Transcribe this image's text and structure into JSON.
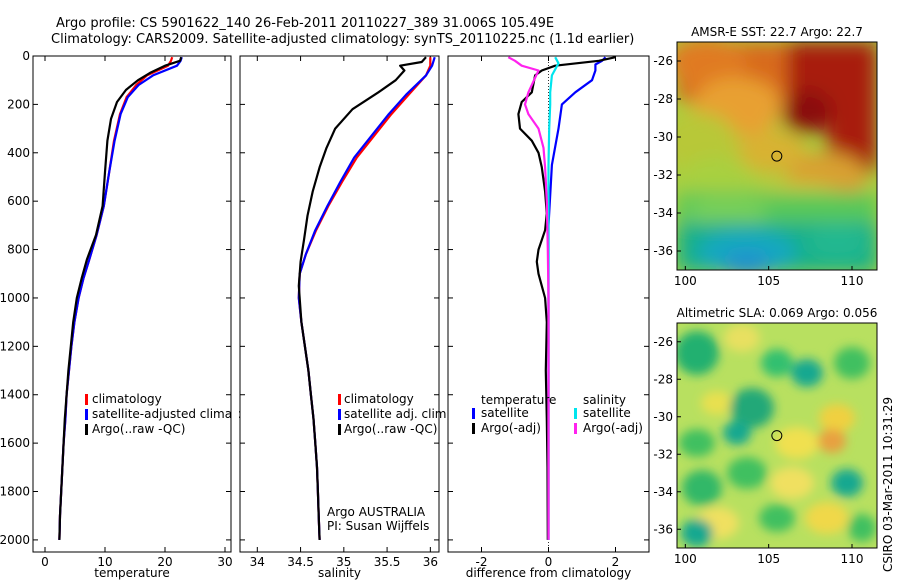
{
  "header": {
    "line1": "Argo profile: CS 5901622_140 26-Feb-2011 20110227_389 31.006S 105.49E",
    "line2": "Climatology: CARS2009. Satellite-adjusted climatology: synTS_20110225.nc (1.1d earlier)"
  },
  "side_label": "CSIRO 03-Mar-2011 10:31:29",
  "colors": {
    "climatology": "#ff0000",
    "satellite": "#0000ff",
    "argo": "#000000",
    "satellite_salinity": "#00e5ee",
    "argo_adj_salinity": "#ff22ee"
  },
  "chart_data": [
    {
      "type": "line",
      "id": "temperature",
      "xlabel": "temperature",
      "ylabel": "",
      "xlim": [
        -2,
        31
      ],
      "ylim": [
        2050,
        0
      ],
      "xticks": [
        0,
        10,
        20,
        30
      ],
      "yticks": [
        0,
        200,
        400,
        600,
        800,
        1000,
        1200,
        1400,
        1600,
        1800,
        2000
      ],
      "legend": {
        "placement": "lower-left",
        "entries": [
          "climatology",
          "satellite-adjusted climatolog",
          "Argo(..raw -QC)"
        ]
      },
      "series": [
        {
          "name": "climatology",
          "color": "#ff0000",
          "points": [
            [
              21.2,
              5
            ],
            [
              21.0,
              20
            ],
            [
              20.5,
              40
            ],
            [
              17.0,
              80
            ],
            [
              15.2,
              120
            ],
            [
              13.6,
              170
            ],
            [
              12.5,
              240
            ],
            [
              11.5,
              350
            ],
            [
              10.7,
              480
            ],
            [
              9.8,
              620
            ],
            [
              8.6,
              740
            ],
            [
              7.4,
              840
            ],
            [
              6.4,
              920
            ],
            [
              5.6,
              1000
            ],
            [
              4.9,
              1100
            ],
            [
              4.4,
              1200
            ],
            [
              4.0,
              1300
            ],
            [
              3.6,
              1400
            ],
            [
              3.4,
              1500
            ],
            [
              3.1,
              1600
            ],
            [
              2.9,
              1700
            ],
            [
              2.7,
              1800
            ],
            [
              2.5,
              1900
            ],
            [
              2.4,
              2000
            ]
          ]
        },
        {
          "name": "satellite-adjusted climatolog",
          "color": "#0000ff",
          "points": [
            [
              22.8,
              5
            ],
            [
              22.6,
              20
            ],
            [
              22.0,
              40
            ],
            [
              18.0,
              80
            ],
            [
              15.6,
              120
            ],
            [
              13.8,
              170
            ],
            [
              12.6,
              240
            ],
            [
              11.6,
              350
            ],
            [
              10.7,
              480
            ],
            [
              9.8,
              620
            ],
            [
              8.6,
              740
            ],
            [
              7.4,
              840
            ],
            [
              6.4,
              920
            ],
            [
              5.6,
              1000
            ],
            [
              4.9,
              1100
            ],
            [
              4.4,
              1200
            ],
            [
              4.0,
              1300
            ],
            [
              3.6,
              1400
            ],
            [
              3.4,
              1500
            ],
            [
              3.1,
              1600
            ],
            [
              2.9,
              1700
            ],
            [
              2.7,
              1800
            ],
            [
              2.5,
              1900
            ],
            [
              2.4,
              2000
            ]
          ]
        },
        {
          "name": "Argo(..raw -QC)",
          "color": "#000000",
          "points": [
            [
              22.7,
              5
            ],
            [
              22.5,
              20
            ],
            [
              20.0,
              40
            ],
            [
              17.5,
              70
            ],
            [
              15.5,
              100
            ],
            [
              13.5,
              140
            ],
            [
              12.0,
              190
            ],
            [
              11.0,
              260
            ],
            [
              10.4,
              350
            ],
            [
              10.0,
              480
            ],
            [
              9.6,
              620
            ],
            [
              8.5,
              740
            ],
            [
              7.0,
              840
            ],
            [
              6.1,
              920
            ],
            [
              5.3,
              1000
            ],
            [
              4.7,
              1100
            ],
            [
              4.3,
              1200
            ],
            [
              3.9,
              1300
            ],
            [
              3.6,
              1400
            ],
            [
              3.3,
              1500
            ],
            [
              3.1,
              1600
            ],
            [
              2.9,
              1700
            ],
            [
              2.7,
              1800
            ],
            [
              2.5,
              1900
            ],
            [
              2.4,
              2000
            ]
          ]
        }
      ]
    },
    {
      "type": "line",
      "id": "salinity",
      "xlabel": "salinity",
      "xlim": [
        33.8,
        36.1
      ],
      "ylim": [
        2050,
        0
      ],
      "xticks": [
        34,
        34.5,
        35,
        35.5,
        36
      ],
      "legend": {
        "placement": "lower-right",
        "entries": [
          "climatology",
          "satellite adj. clim.",
          "Argo(..raw -QC)"
        ]
      },
      "annotation": [
        "Argo AUSTRALIA",
        "PI: Susan Wijffels"
      ],
      "series": [
        {
          "name": "climatology",
          "color": "#ff0000",
          "points": [
            [
              36.0,
              5
            ],
            [
              36.0,
              40
            ],
            [
              35.95,
              80
            ],
            [
              35.75,
              160
            ],
            [
              35.55,
              240
            ],
            [
              35.35,
              330
            ],
            [
              35.15,
              420
            ],
            [
              34.98,
              520
            ],
            [
              34.82,
              620
            ],
            [
              34.68,
              720
            ],
            [
              34.56,
              820
            ],
            [
              34.49,
              900
            ],
            [
              34.48,
              1000
            ],
            [
              34.51,
              1100
            ],
            [
              34.55,
              1200
            ],
            [
              34.59,
              1300
            ],
            [
              34.62,
              1400
            ],
            [
              34.65,
              1500
            ],
            [
              34.67,
              1600
            ],
            [
              34.69,
              1700
            ],
            [
              34.7,
              1800
            ],
            [
              34.71,
              1900
            ],
            [
              34.72,
              2000
            ]
          ]
        },
        {
          "name": "satellite adj. clim.",
          "color": "#0000ff",
          "points": [
            [
              36.05,
              5
            ],
            [
              36.02,
              40
            ],
            [
              35.95,
              80
            ],
            [
              35.72,
              160
            ],
            [
              35.52,
              240
            ],
            [
              35.32,
              330
            ],
            [
              35.12,
              420
            ],
            [
              34.96,
              520
            ],
            [
              34.81,
              620
            ],
            [
              34.67,
              720
            ],
            [
              34.56,
              820
            ],
            [
              34.49,
              900
            ],
            [
              34.48,
              1000
            ],
            [
              34.51,
              1100
            ],
            [
              34.55,
              1200
            ],
            [
              34.59,
              1300
            ],
            [
              34.62,
              1400
            ],
            [
              34.65,
              1500
            ],
            [
              34.67,
              1600
            ],
            [
              34.69,
              1700
            ],
            [
              34.7,
              1800
            ],
            [
              34.71,
              1900
            ],
            [
              34.72,
              2000
            ]
          ]
        },
        {
          "name": "Argo(..raw -QC)",
          "color": "#000000",
          "points": [
            [
              35.95,
              5
            ],
            [
              35.9,
              25
            ],
            [
              35.65,
              40
            ],
            [
              35.7,
              60
            ],
            [
              35.6,
              100
            ],
            [
              35.4,
              150
            ],
            [
              35.1,
              220
            ],
            [
              34.9,
              300
            ],
            [
              34.8,
              380
            ],
            [
              34.72,
              460
            ],
            [
              34.64,
              560
            ],
            [
              34.58,
              660
            ],
            [
              34.54,
              760
            ],
            [
              34.5,
              850
            ],
            [
              34.48,
              950
            ],
            [
              34.51,
              1100
            ],
            [
              34.55,
              1200
            ],
            [
              34.59,
              1300
            ],
            [
              34.62,
              1400
            ],
            [
              34.65,
              1500
            ],
            [
              34.67,
              1600
            ],
            [
              34.69,
              1700
            ],
            [
              34.7,
              1800
            ],
            [
              34.71,
              1900
            ],
            [
              34.72,
              2000
            ]
          ]
        }
      ]
    },
    {
      "type": "line",
      "id": "difference",
      "xlabel": "difference from climatology",
      "xlim": [
        -3,
        3
      ],
      "ylim": [
        2050,
        0
      ],
      "xticks": [
        -2,
        0,
        2
      ],
      "legend": {
        "placement": "lower",
        "groups": [
          {
            "title": "temperature",
            "entries": [
              "satellite",
              "Argo(-adj)"
            ]
          },
          {
            "title": "salinity",
            "entries": [
              "satellite",
              "Argo(-adj)"
            ]
          }
        ]
      },
      "series": [
        {
          "name": "temperature satellite",
          "color": "#0000ff",
          "points": [
            [
              1.7,
              5
            ],
            [
              1.6,
              20
            ],
            [
              1.4,
              35
            ],
            [
              1.4,
              60
            ],
            [
              1.3,
              100
            ],
            [
              0.8,
              150
            ],
            [
              0.4,
              200
            ],
            [
              0.3,
              300
            ],
            [
              0.1,
              450
            ],
            [
              0.0,
              700
            ],
            [
              0.0,
              2000
            ]
          ]
        },
        {
          "name": "temperature Argo(-adj)",
          "color": "#000000",
          "points": [
            [
              2.0,
              5
            ],
            [
              1.5,
              20
            ],
            [
              0.2,
              40
            ],
            [
              -0.2,
              60
            ],
            [
              -0.4,
              80
            ],
            [
              -0.5,
              150
            ],
            [
              -0.8,
              190
            ],
            [
              -0.9,
              240
            ],
            [
              -0.85,
              300
            ],
            [
              -0.5,
              350
            ],
            [
              -0.3,
              400
            ],
            [
              -0.2,
              460
            ],
            [
              -0.1,
              560
            ],
            [
              -0.05,
              650
            ],
            [
              -0.1,
              720
            ],
            [
              -0.3,
              800
            ],
            [
              -0.35,
              850
            ],
            [
              -0.3,
              900
            ],
            [
              -0.2,
              950
            ],
            [
              -0.1,
              1000
            ],
            [
              -0.05,
              1100
            ],
            [
              -0.08,
              1300
            ],
            [
              -0.05,
              1500
            ],
            [
              -0.03,
              1700
            ],
            [
              -0.02,
              2000
            ]
          ]
        },
        {
          "name": "salinity satellite",
          "color": "#00e5ee",
          "points": [
            [
              0.2,
              5
            ],
            [
              0.3,
              30
            ],
            [
              0.1,
              80
            ],
            [
              0.05,
              150
            ],
            [
              0.05,
              200
            ],
            [
              0.02,
              300
            ],
            [
              0.0,
              450
            ],
            [
              0.0,
              2000
            ]
          ]
        },
        {
          "name": "salinity Argo(-adj)",
          "color": "#ff22ee",
          "points": [
            [
              -1.2,
              5
            ],
            [
              -1.0,
              20
            ],
            [
              -0.8,
              40
            ],
            [
              -0.3,
              60
            ],
            [
              -0.6,
              150
            ],
            [
              -0.7,
              200
            ],
            [
              -0.6,
              240
            ],
            [
              -0.3,
              300
            ],
            [
              -0.15,
              380
            ],
            [
              -0.1,
              460
            ],
            [
              -0.05,
              600
            ],
            [
              -0.02,
              800
            ],
            [
              0.0,
              1000
            ],
            [
              0.0,
              2000
            ]
          ]
        }
      ]
    },
    {
      "type": "heatmap",
      "id": "sst_map",
      "title": "AMSR-E SST: 22.7 Argo: 22.7",
      "xlim": [
        99.5,
        111.5
      ],
      "ylim": [
        -37,
        -25
      ],
      "xticks": [
        100,
        105,
        110
      ],
      "yticks": [
        -26,
        -28,
        -30,
        -32,
        -34,
        -36
      ],
      "marker": [
        105.49,
        -31.006
      ]
    },
    {
      "type": "heatmap",
      "id": "sla_map",
      "title": "Altimetric SLA: 0.069 Argo: 0.056",
      "xlim": [
        99.5,
        111.5
      ],
      "ylim": [
        -37,
        -25
      ],
      "xticks": [
        100,
        105,
        110
      ],
      "yticks": [
        -26,
        -28,
        -30,
        -32,
        -34,
        -36
      ],
      "marker": [
        105.49,
        -31.006
      ]
    }
  ]
}
